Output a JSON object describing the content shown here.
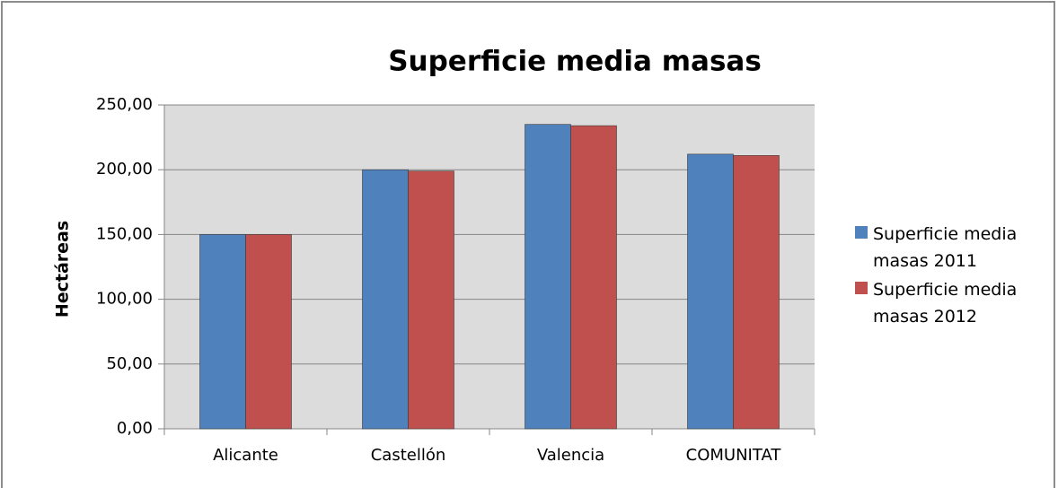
{
  "chart_data": {
    "type": "bar",
    "title": "Superficie media masas",
    "y_label": "Hectáreas",
    "categories": [
      "Alicante",
      "Castellón",
      "Valencia",
      "COMUNITAT"
    ],
    "series": [
      {
        "name": "Superficie media masas 2011",
        "color": "#4f81bd",
        "values": [
          150,
          200,
          235,
          212
        ]
      },
      {
        "name": "Superficie media masas 2012",
        "color": "#c0504d",
        "values": [
          150,
          199,
          234,
          211
        ]
      }
    ],
    "ylim": [
      0,
      250
    ],
    "yticks": [
      {
        "value": 0,
        "label": "0,00"
      },
      {
        "value": 50,
        "label": "50,00"
      },
      {
        "value": 100,
        "label": "100,00"
      },
      {
        "value": 150,
        "label": "150,00"
      },
      {
        "value": 200,
        "label": "200,00"
      },
      {
        "value": 250,
        "label": "250,00"
      }
    ],
    "grid": true,
    "legend": "right"
  }
}
